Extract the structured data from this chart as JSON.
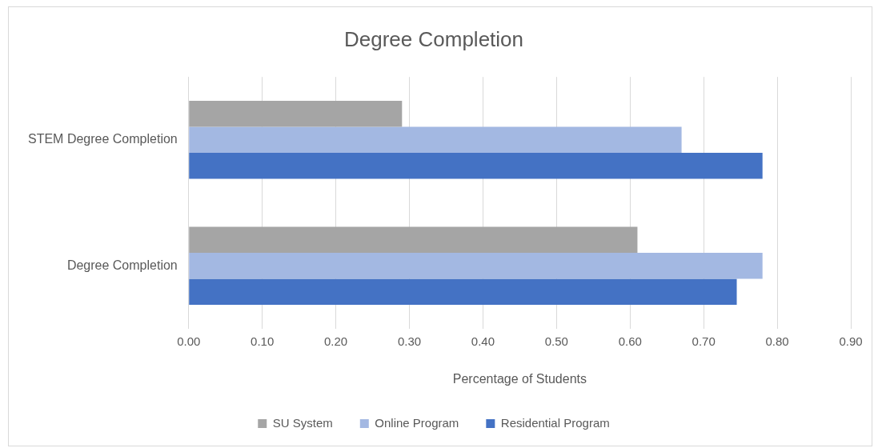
{
  "chart_data": {
    "type": "bar",
    "orientation": "horizontal",
    "title": "Degree Completion",
    "xlabel": "Percentage of Students",
    "categories": [
      "STEM Degree Completion",
      "Degree Completion"
    ],
    "series": [
      {
        "name": "SU System",
        "color": "#a5a5a5",
        "values": [
          0.29,
          0.61
        ]
      },
      {
        "name": "Online Program",
        "color": "#a3b8e2",
        "values": [
          0.67,
          0.78
        ]
      },
      {
        "name": "Residential Program",
        "color": "#4472c4",
        "values": [
          0.78,
          0.745
        ]
      }
    ],
    "xlim": [
      0,
      0.9
    ],
    "xticks": [
      {
        "value": 0,
        "label": "0.00"
      },
      {
        "value": 0.1,
        "label": "0.10"
      },
      {
        "value": 0.2,
        "label": "0.20"
      },
      {
        "value": 0.3,
        "label": "0.30"
      },
      {
        "value": 0.4,
        "label": "0.40"
      },
      {
        "value": 0.5,
        "label": "0.50"
      },
      {
        "value": 0.6,
        "label": "0.60"
      },
      {
        "value": 0.7,
        "label": "0.70"
      },
      {
        "value": 0.8,
        "label": "0.80"
      },
      {
        "value": 0.9,
        "label": "0.90"
      }
    ],
    "grid": "x",
    "legend": "bottom"
  }
}
